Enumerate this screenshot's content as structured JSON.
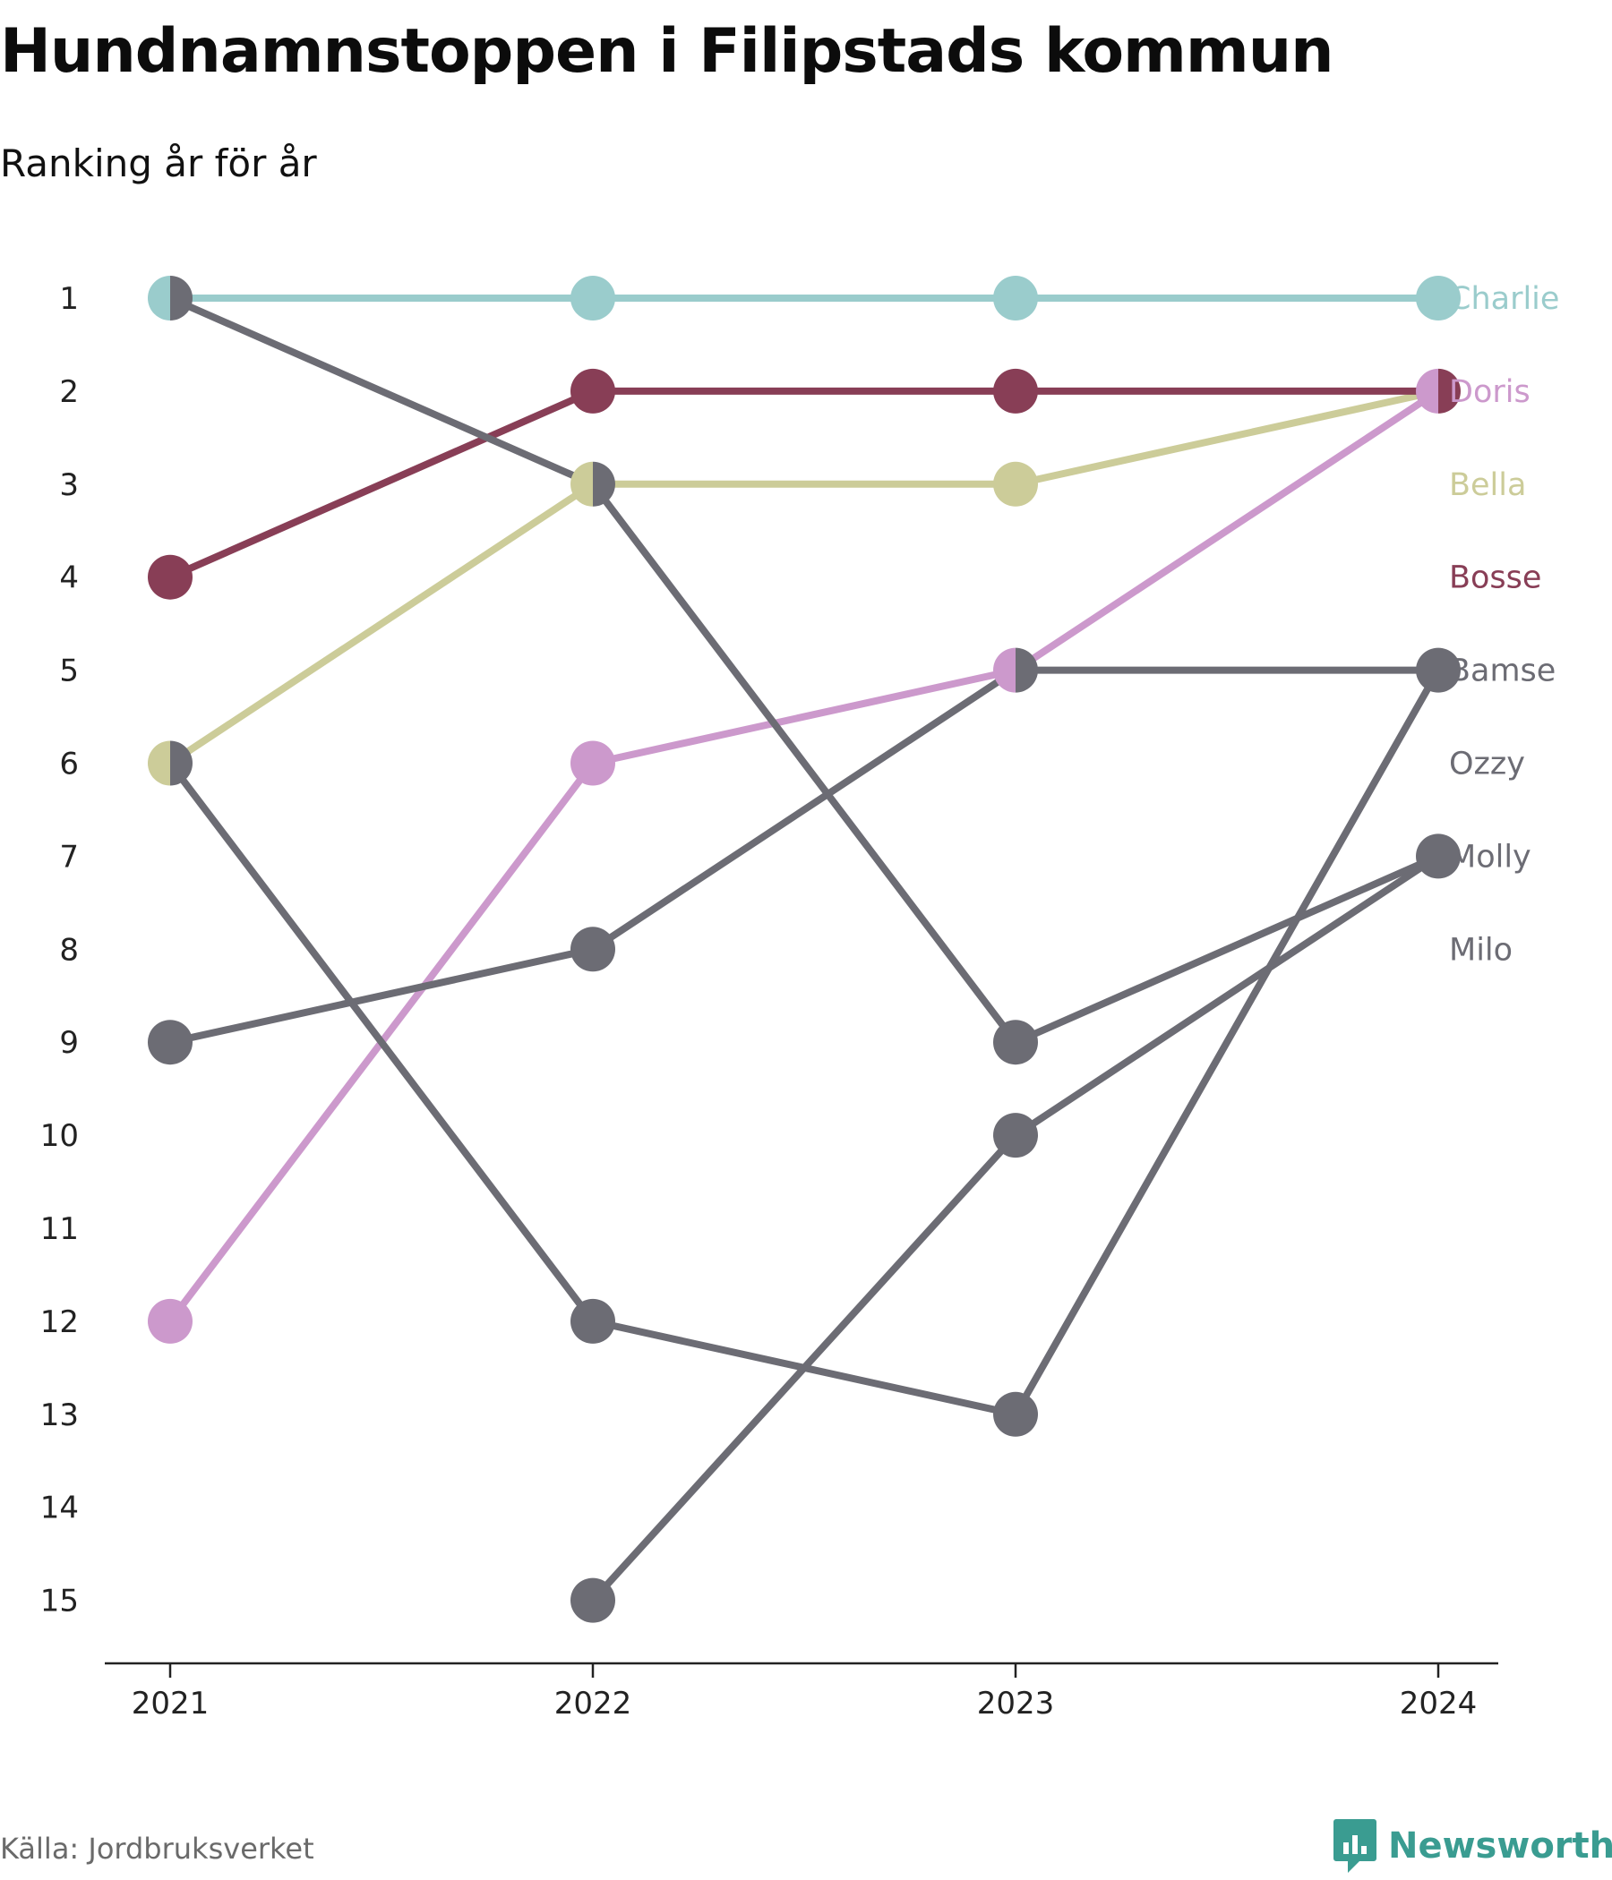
{
  "title": "Hundnamnstoppen i Filipstads kommun",
  "subtitle": "Ranking år för år",
  "source": "Källa: Jordbruksverket",
  "brand": {
    "name": "Newsworthy",
    "icon": "newsworthy-logo-icon",
    "color": "#3a9c91"
  },
  "chart_data": {
    "type": "line",
    "chart_subtype": "bump",
    "x": [
      "2021",
      "2022",
      "2023",
      "2024"
    ],
    "y_ticks": [
      1,
      2,
      3,
      4,
      5,
      6,
      7,
      8,
      9,
      10,
      11,
      12,
      13,
      14,
      15
    ],
    "ylim": [
      1,
      15
    ],
    "y_reversed": true,
    "grid": false,
    "series": [
      {
        "name": "Charlie",
        "color": "#9acccc",
        "values": [
          1,
          1,
          1,
          1
        ]
      },
      {
        "name": "Doris",
        "color": "#cc99cc",
        "values": [
          12,
          6,
          5,
          2
        ]
      },
      {
        "name": "Bella",
        "color": "#cccc99",
        "values": [
          6,
          3,
          3,
          2
        ]
      },
      {
        "name": "Bosse",
        "color": "#883e56",
        "values": [
          4,
          2,
          2,
          2
        ]
      },
      {
        "name": "Bamse",
        "color": "#6c6c74",
        "values": [
          9,
          8,
          5,
          5
        ]
      },
      {
        "name": "Ozzy",
        "color": "#6c6c74",
        "values": [
          1,
          3,
          9,
          7
        ]
      },
      {
        "name": "Molly",
        "color": "#6c6c74",
        "values": [
          null,
          15,
          10,
          7
        ]
      },
      {
        "name": "Milo",
        "color": "#6c6c74",
        "values": [
          6,
          12,
          13,
          5
        ]
      }
    ]
  }
}
